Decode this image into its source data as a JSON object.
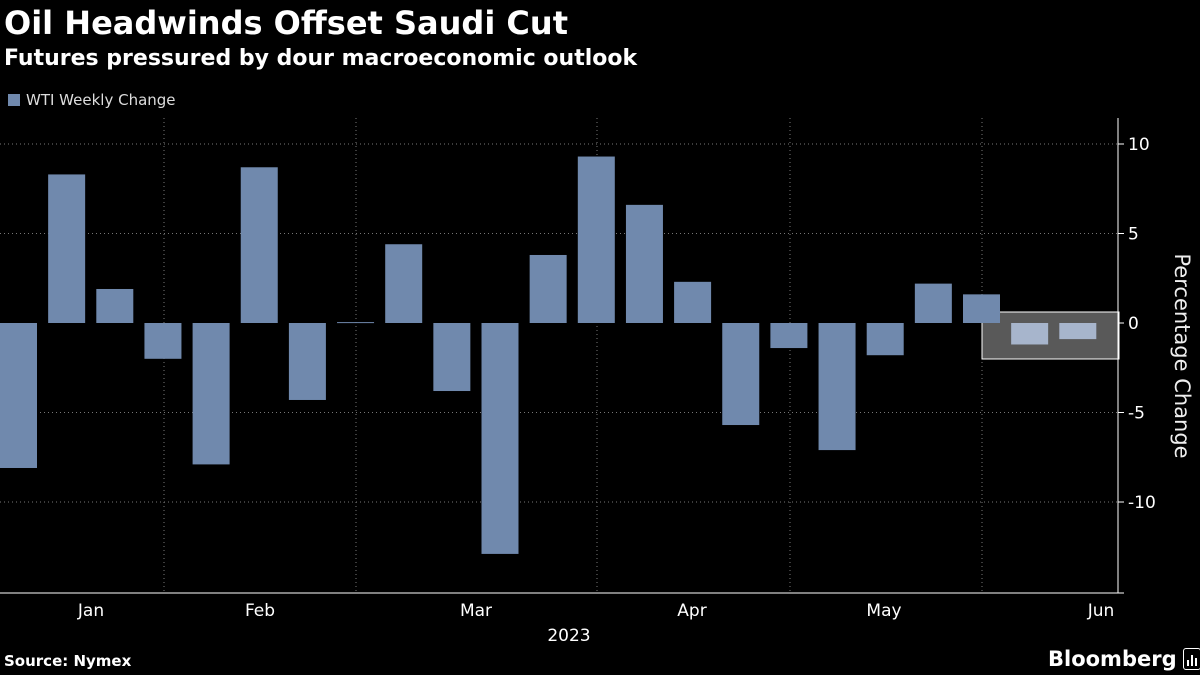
{
  "header": {
    "title": "Oil Headwinds Offset Saudi Cut",
    "subtitle": "Futures pressured by dour macroeconomic outlook"
  },
  "footer": {
    "source": "Source: Nymex",
    "brand": "Bloomberg"
  },
  "colors": {
    "bar": "#7089ad",
    "bar_highlight": "#a7b5cc",
    "highlight_box_fill": "#595959",
    "gridline": "#777777",
    "axis": "#ffffff"
  },
  "icons": {
    "brand_icon": "bloomberg-chart-icon"
  },
  "chart_data": {
    "type": "bar",
    "legend": [
      "WTI Weekly Change"
    ],
    "legend_position": "top-left",
    "title": "Oil Headwinds Offset Saudi Cut",
    "subtitle": "Futures pressured by dour macroeconomic outlook",
    "xlabel": "2023",
    "ylabel": "Percentage Change",
    "ylim": [
      -15,
      11.5
    ],
    "yticks": [
      10,
      5,
      0,
      -5,
      -10
    ],
    "y_axis_side": "right",
    "grid": "dotted vertical at month starts, dotted horizontal at y-ticks",
    "x_tick_labels": [
      "Jan",
      "Feb",
      "Mar",
      "Apr",
      "May",
      "Jun"
    ],
    "year_label": "2023",
    "series": [
      {
        "name": "WTI Weekly Change",
        "values": [
          -8.1,
          8.3,
          1.9,
          -2.0,
          -7.9,
          8.7,
          -4.3,
          0.05,
          4.4,
          -3.8,
          -12.9,
          3.8,
          9.3,
          6.6,
          2.3,
          -5.7,
          -1.4,
          -7.1,
          -1.8,
          2.2,
          1.6,
          -1.2,
          -0.9
        ]
      }
    ],
    "highlighted_last_n": 2
  }
}
